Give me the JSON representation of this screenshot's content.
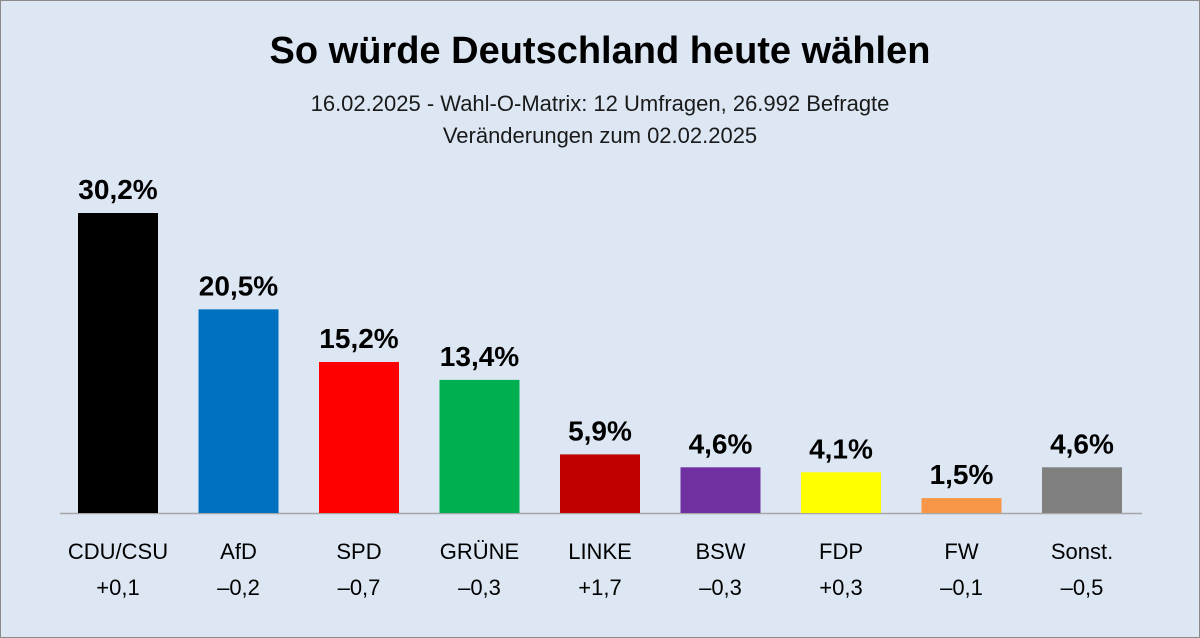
{
  "title": "So würde Deutschland heute wählen",
  "subtitle": {
    "line1": "16.02.2025 - Wahl-O-Matrix: 12 Umfragen, 26.992 Befragte",
    "line2": "Veränderungen zum 02.02.2025"
  },
  "chart_data": {
    "type": "bar",
    "categories": [
      "CDU/CSU",
      "AfD",
      "SPD",
      "GRÜNE",
      "LINKE",
      "BSW",
      "FDP",
      "FW",
      "Sonst."
    ],
    "values": [
      30.2,
      20.5,
      15.2,
      13.4,
      5.9,
      4.6,
      4.1,
      1.5,
      4.6
    ],
    "value_labels": [
      "30,2%",
      "20,5%",
      "15,2%",
      "13,4%",
      "5,9%",
      "4,6%",
      "4,1%",
      "1,5%",
      "4,6%"
    ],
    "changes": [
      "+0,1",
      "–0,2",
      "–0,7",
      "–0,3",
      "+1,7",
      "–0,3",
      "+0,3",
      "–0,1",
      "–0,5"
    ],
    "colors": [
      "#000000",
      "#0070c0",
      "#ff0000",
      "#00b050",
      "#c00000",
      "#7030a0",
      "#ffff00",
      "#f79646",
      "#808080"
    ],
    "ylim": [
      0,
      30.2
    ],
    "grid": false,
    "legend": "none"
  }
}
